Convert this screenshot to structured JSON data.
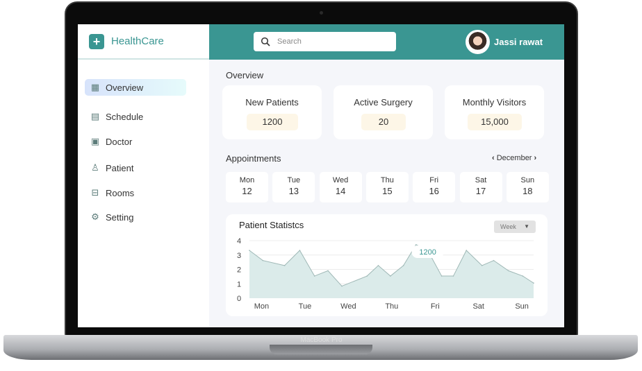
{
  "device": {
    "label": "MacBook Pro"
  },
  "brand": {
    "name": "HealthCare",
    "icon": "plus-icon"
  },
  "sidebar": {
    "items": [
      {
        "label": "Overview",
        "icon": "grid-icon",
        "active": true
      },
      {
        "label": "Schedule",
        "icon": "calendar-icon"
      },
      {
        "label": "Doctor",
        "icon": "clipboard-icon"
      },
      {
        "label": "Patient",
        "icon": "person-icon"
      },
      {
        "label": "Rooms",
        "icon": "bed-icon"
      },
      {
        "label": "Setting",
        "icon": "gear-icon"
      }
    ]
  },
  "header": {
    "search_placeholder": "Search",
    "user_name": "Jassi rawat"
  },
  "overview": {
    "title": "Overview",
    "stats": [
      {
        "label": "New Patients",
        "value": "1200"
      },
      {
        "label": "Active Surgery",
        "value": "20"
      },
      {
        "label": "Monthly Visitors",
        "value": "15,000"
      }
    ]
  },
  "appointments": {
    "title": "Appointments",
    "month": "December",
    "days": [
      {
        "day": "Mon",
        "date": "12"
      },
      {
        "day": "Tue",
        "date": "13"
      },
      {
        "day": "Wed",
        "date": "14"
      },
      {
        "day": "Thu",
        "date": "15"
      },
      {
        "day": "Fri",
        "date": "16"
      },
      {
        "day": "Sat",
        "date": "17"
      },
      {
        "day": "Sun",
        "date": "18"
      }
    ]
  },
  "colors": {
    "accent": "#3a9692",
    "area": "#dbebea",
    "highlight": "#fdf6e7"
  },
  "chart_data": {
    "type": "area",
    "title": "Patient Statistcs",
    "period_select": "Week",
    "xlabel": "",
    "ylabel": "",
    "x_ticks": [
      "Mon",
      "Tue",
      "Wed",
      "Thu",
      "Fri",
      "Sat",
      "Sun"
    ],
    "y_ticks": [
      "0",
      "1",
      "2",
      "3",
      "4"
    ],
    "ylim": [
      0,
      4
    ],
    "xlim": [
      -0.28,
      6.27
    ],
    "grid": true,
    "points": [
      [
        -0.28,
        3.32
      ],
      [
        0.03,
        2.62
      ],
      [
        0.53,
        2.27
      ],
      [
        0.88,
        3.32
      ],
      [
        1.22,
        1.54
      ],
      [
        1.53,
        1.91
      ],
      [
        1.85,
        0.84
      ],
      [
        2.43,
        1.54
      ],
      [
        2.69,
        2.27
      ],
      [
        2.97,
        1.54
      ],
      [
        3.27,
        2.27
      ],
      [
        3.56,
        3.72
      ],
      [
        3.83,
        3.32
      ],
      [
        4.15,
        1.54
      ],
      [
        4.42,
        1.54
      ],
      [
        4.72,
        3.32
      ],
      [
        5.08,
        2.27
      ],
      [
        5.35,
        2.62
      ],
      [
        5.69,
        1.91
      ],
      [
        6.02,
        1.54
      ],
      [
        6.27,
        1.05
      ]
    ],
    "annotation": "1200"
  }
}
